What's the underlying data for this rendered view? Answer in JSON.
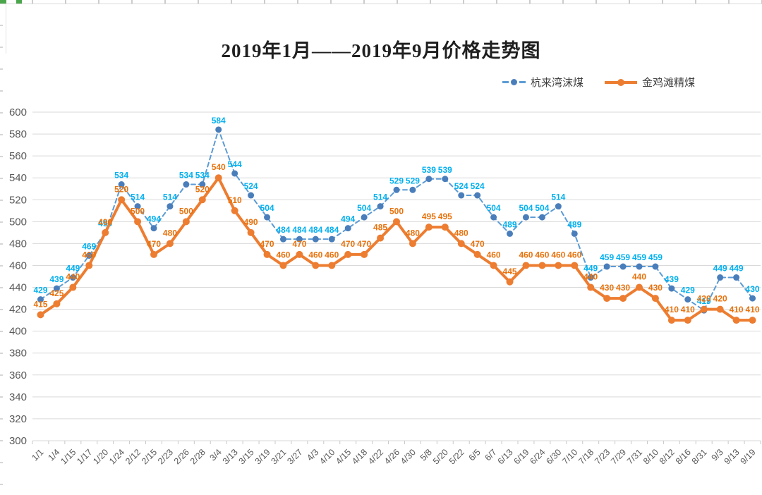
{
  "page": {
    "title": "2019年1月——2019年9月价格走势图"
  },
  "chart_data": {
    "type": "line",
    "title": "2019年1月——2019年9月价格走势图",
    "xlabel": "",
    "ylabel": "",
    "ylim": [
      300,
      600
    ],
    "ytick_step": 20,
    "yticks": [
      300,
      320,
      340,
      360,
      380,
      400,
      420,
      440,
      460,
      480,
      500,
      520,
      540,
      560,
      580,
      600
    ],
    "grid": true,
    "legend_position": "top-right",
    "categories": [
      "1/1",
      "1/4",
      "1/15",
      "1/17",
      "1/20",
      "1/24",
      "2/12",
      "2/15",
      "2/23",
      "2/26",
      "2/28",
      "3/4",
      "3/13",
      "3/15",
      "3/19",
      "3/21",
      "3/27",
      "4/3",
      "4/10",
      "4/15",
      "4/18",
      "4/22",
      "4/26",
      "4/30",
      "5/8",
      "5/20",
      "5/22",
      "6/5",
      "6/7",
      "6/13",
      "6/19",
      "6/24",
      "6/30",
      "7/10",
      "7/18",
      "7/23",
      "7/29",
      "7/31",
      "8/10",
      "8/12",
      "8/16",
      "8/31",
      "9/3",
      "9/13",
      "9/19"
    ],
    "series": [
      {
        "id": "hanglaiwan",
        "name": "杭来湾沫煤",
        "style": "dashed",
        "color": "#5B9BD5",
        "marker_color": "#4A7EBB",
        "label_color": "#00B0F0",
        "values": [
          429,
          439,
          449,
          469,
          490,
          534,
          514,
          494,
          514,
          534,
          534,
          584,
          544,
          524,
          504,
          484,
          484,
          484,
          484,
          494,
          504,
          514,
          529,
          529,
          539,
          539,
          524,
          524,
          504,
          489,
          504,
          504,
          514,
          489,
          449,
          459,
          459,
          459,
          459,
          439,
          429,
          419,
          449,
          449,
          430
        ]
      },
      {
        "id": "jinjitan",
        "name": "金鸡滩精煤",
        "style": "solid",
        "color": "#ED7D31",
        "marker_color": "#ED7D31",
        "label_color": "#E8720C",
        "values": [
          415,
          425,
          440,
          460,
          490,
          520,
          500,
          470,
          480,
          500,
          520,
          540,
          510,
          490,
          470,
          460,
          470,
          460,
          460,
          470,
          470,
          485,
          500,
          480,
          495,
          495,
          480,
          470,
          460,
          445,
          460,
          460,
          460,
          460,
          440,
          430,
          430,
          440,
          430,
          410,
          410,
          420,
          420,
          410,
          410
        ]
      }
    ],
    "axis_label_color": "#595959",
    "gridline_color": "#D9D9D9"
  }
}
